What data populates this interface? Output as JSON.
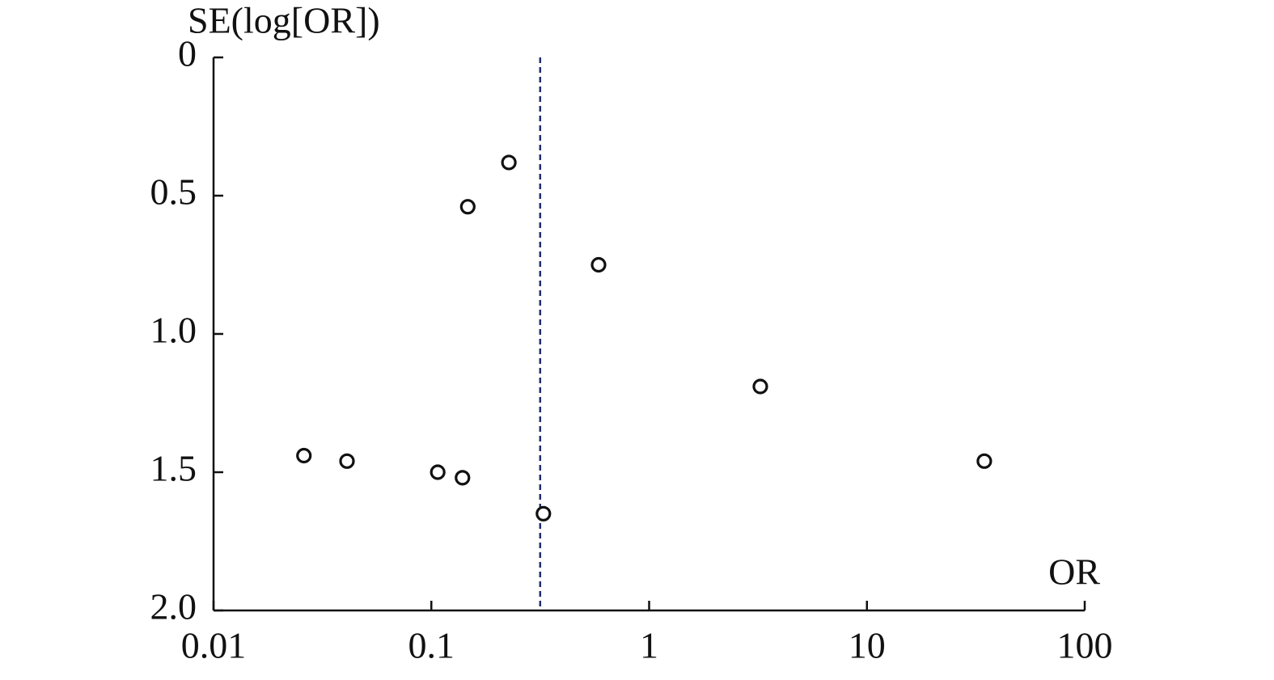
{
  "chart_data": {
    "type": "scatter",
    "y_label": "SE(log[OR])",
    "x_label": "OR",
    "x_log": true,
    "y_inverted": true,
    "xlim": [
      0.01,
      100
    ],
    "xticks": [
      0.01,
      0.1,
      1,
      10,
      100
    ],
    "ylim": [
      0,
      2
    ],
    "yticks": [
      0,
      0.5,
      {
        "value": 1,
        "label": "1.0"
      },
      1.5,
      {
        "value": 2,
        "label": "2.0"
      }
    ],
    "reference_x": 0.316,
    "reference_color": "#1f2f6b",
    "color": "#111111",
    "x": [
      0.026,
      0.041,
      0.107,
      0.139,
      0.147,
      0.227,
      0.327,
      0.586,
      3.24,
      34.6
    ],
    "values": [
      1.44,
      1.46,
      1.5,
      1.52,
      0.54,
      0.38,
      1.65,
      0.75,
      1.19,
      1.46
    ]
  }
}
